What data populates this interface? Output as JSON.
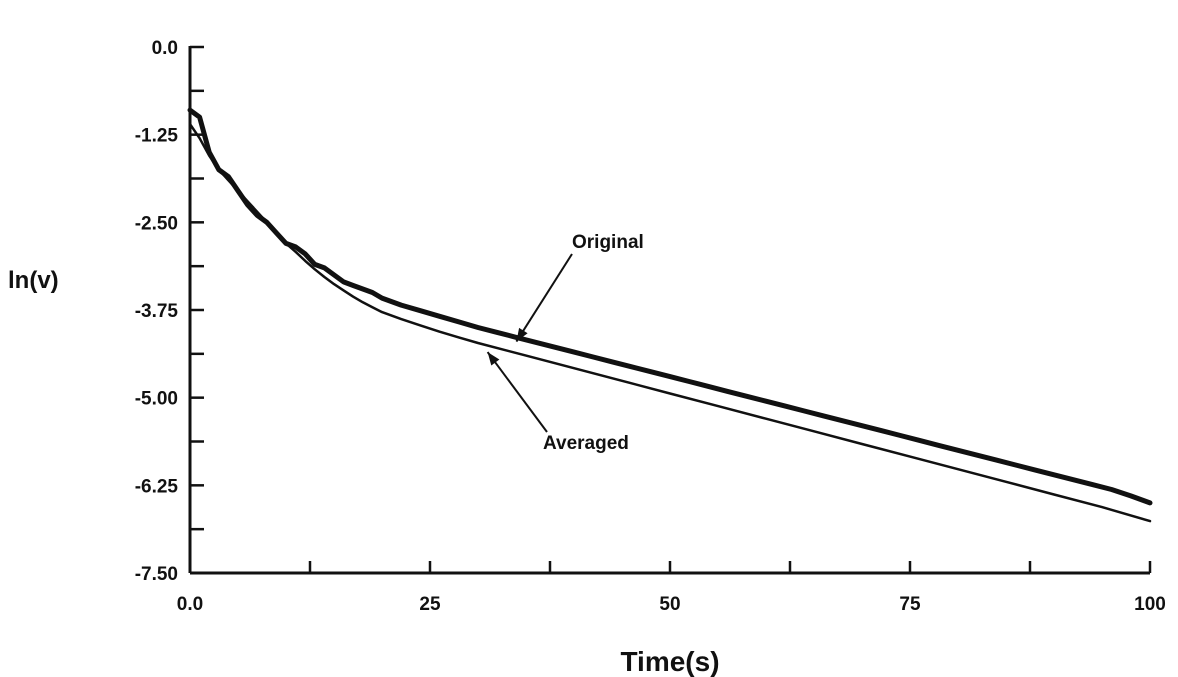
{
  "chart_data": {
    "type": "line",
    "xlabel": "Time(s)",
    "ylabel": "ln(v)",
    "xlim": [
      0,
      100
    ],
    "ylim": [
      -7.5,
      0
    ],
    "x_ticks": [
      "0.0",
      "25",
      "50",
      "75",
      "100"
    ],
    "y_ticks": [
      "0.0",
      "-1.25",
      "-2.50",
      "-3.75",
      "-5.00",
      "-6.25",
      "-7.50"
    ],
    "grid": false,
    "legend": "none",
    "annotations": [
      {
        "text": "Original",
        "series": "Original",
        "target": [
          34,
          -4.2
        ]
      },
      {
        "text": "Averaged",
        "series": "Averaged",
        "target": [
          31,
          -4.35
        ]
      }
    ],
    "series": [
      {
        "name": "Original",
        "values": [
          [
            0,
            -0.9
          ],
          [
            1,
            -1.0
          ],
          [
            2,
            -1.5
          ],
          [
            3,
            -1.75
          ],
          [
            4,
            -1.85
          ],
          [
            5,
            -2.05
          ],
          [
            6,
            -2.25
          ],
          [
            7,
            -2.4
          ],
          [
            8,
            -2.5
          ],
          [
            9,
            -2.65
          ],
          [
            10,
            -2.8
          ],
          [
            11,
            -2.85
          ],
          [
            12,
            -2.95
          ],
          [
            13,
            -3.1
          ],
          [
            14,
            -3.15
          ],
          [
            15,
            -3.25
          ],
          [
            16,
            -3.35
          ],
          [
            17,
            -3.4
          ],
          [
            18,
            -3.45
          ],
          [
            19,
            -3.5
          ],
          [
            20,
            -3.58
          ],
          [
            22,
            -3.68
          ],
          [
            24,
            -3.76
          ],
          [
            26,
            -3.84
          ],
          [
            28,
            -3.92
          ],
          [
            30,
            -4.0
          ],
          [
            32,
            -4.07
          ],
          [
            34,
            -4.14
          ],
          [
            36,
            -4.21
          ],
          [
            38,
            -4.28
          ],
          [
            40,
            -4.35
          ],
          [
            42,
            -4.42
          ],
          [
            44,
            -4.49
          ],
          [
            46,
            -4.56
          ],
          [
            48,
            -4.63
          ],
          [
            50,
            -4.7
          ],
          [
            52,
            -4.77
          ],
          [
            54,
            -4.84
          ],
          [
            56,
            -4.91
          ],
          [
            58,
            -4.98
          ],
          [
            60,
            -5.05
          ],
          [
            62,
            -5.12
          ],
          [
            64,
            -5.19
          ],
          [
            66,
            -5.26
          ],
          [
            68,
            -5.33
          ],
          [
            70,
            -5.4
          ],
          [
            72,
            -5.47
          ],
          [
            74,
            -5.54
          ],
          [
            76,
            -5.61
          ],
          [
            78,
            -5.68
          ],
          [
            80,
            -5.75
          ],
          [
            82,
            -5.82
          ],
          [
            84,
            -5.89
          ],
          [
            86,
            -5.96
          ],
          [
            88,
            -6.03
          ],
          [
            90,
            -6.1
          ],
          [
            92,
            -6.17
          ],
          [
            94,
            -6.24
          ],
          [
            96,
            -6.31
          ],
          [
            98,
            -6.4
          ],
          [
            100,
            -6.5
          ]
        ]
      },
      {
        "name": "Averaged",
        "values": [
          [
            0,
            -1.1
          ],
          [
            1,
            -1.3
          ],
          [
            2,
            -1.55
          ],
          [
            3,
            -1.75
          ],
          [
            4,
            -1.9
          ],
          [
            5,
            -2.05
          ],
          [
            6,
            -2.2
          ],
          [
            7,
            -2.35
          ],
          [
            8,
            -2.5
          ],
          [
            9,
            -2.65
          ],
          [
            10,
            -2.8
          ],
          [
            11,
            -2.92
          ],
          [
            12,
            -3.05
          ],
          [
            13,
            -3.17
          ],
          [
            14,
            -3.28
          ],
          [
            15,
            -3.38
          ],
          [
            16,
            -3.47
          ],
          [
            17,
            -3.56
          ],
          [
            18,
            -3.64
          ],
          [
            19,
            -3.71
          ],
          [
            20,
            -3.78
          ],
          [
            22,
            -3.88
          ],
          [
            24,
            -3.97
          ],
          [
            26,
            -4.06
          ],
          [
            28,
            -4.14
          ],
          [
            30,
            -4.22
          ],
          [
            35,
            -4.4
          ],
          [
            40,
            -4.58
          ],
          [
            45,
            -4.76
          ],
          [
            50,
            -4.94
          ],
          [
            55,
            -5.12
          ],
          [
            60,
            -5.3
          ],
          [
            65,
            -5.48
          ],
          [
            70,
            -5.66
          ],
          [
            75,
            -5.84
          ],
          [
            80,
            -6.02
          ],
          [
            85,
            -6.2
          ],
          [
            90,
            -6.38
          ],
          [
            95,
            -6.56
          ],
          [
            100,
            -6.76
          ]
        ]
      }
    ]
  }
}
